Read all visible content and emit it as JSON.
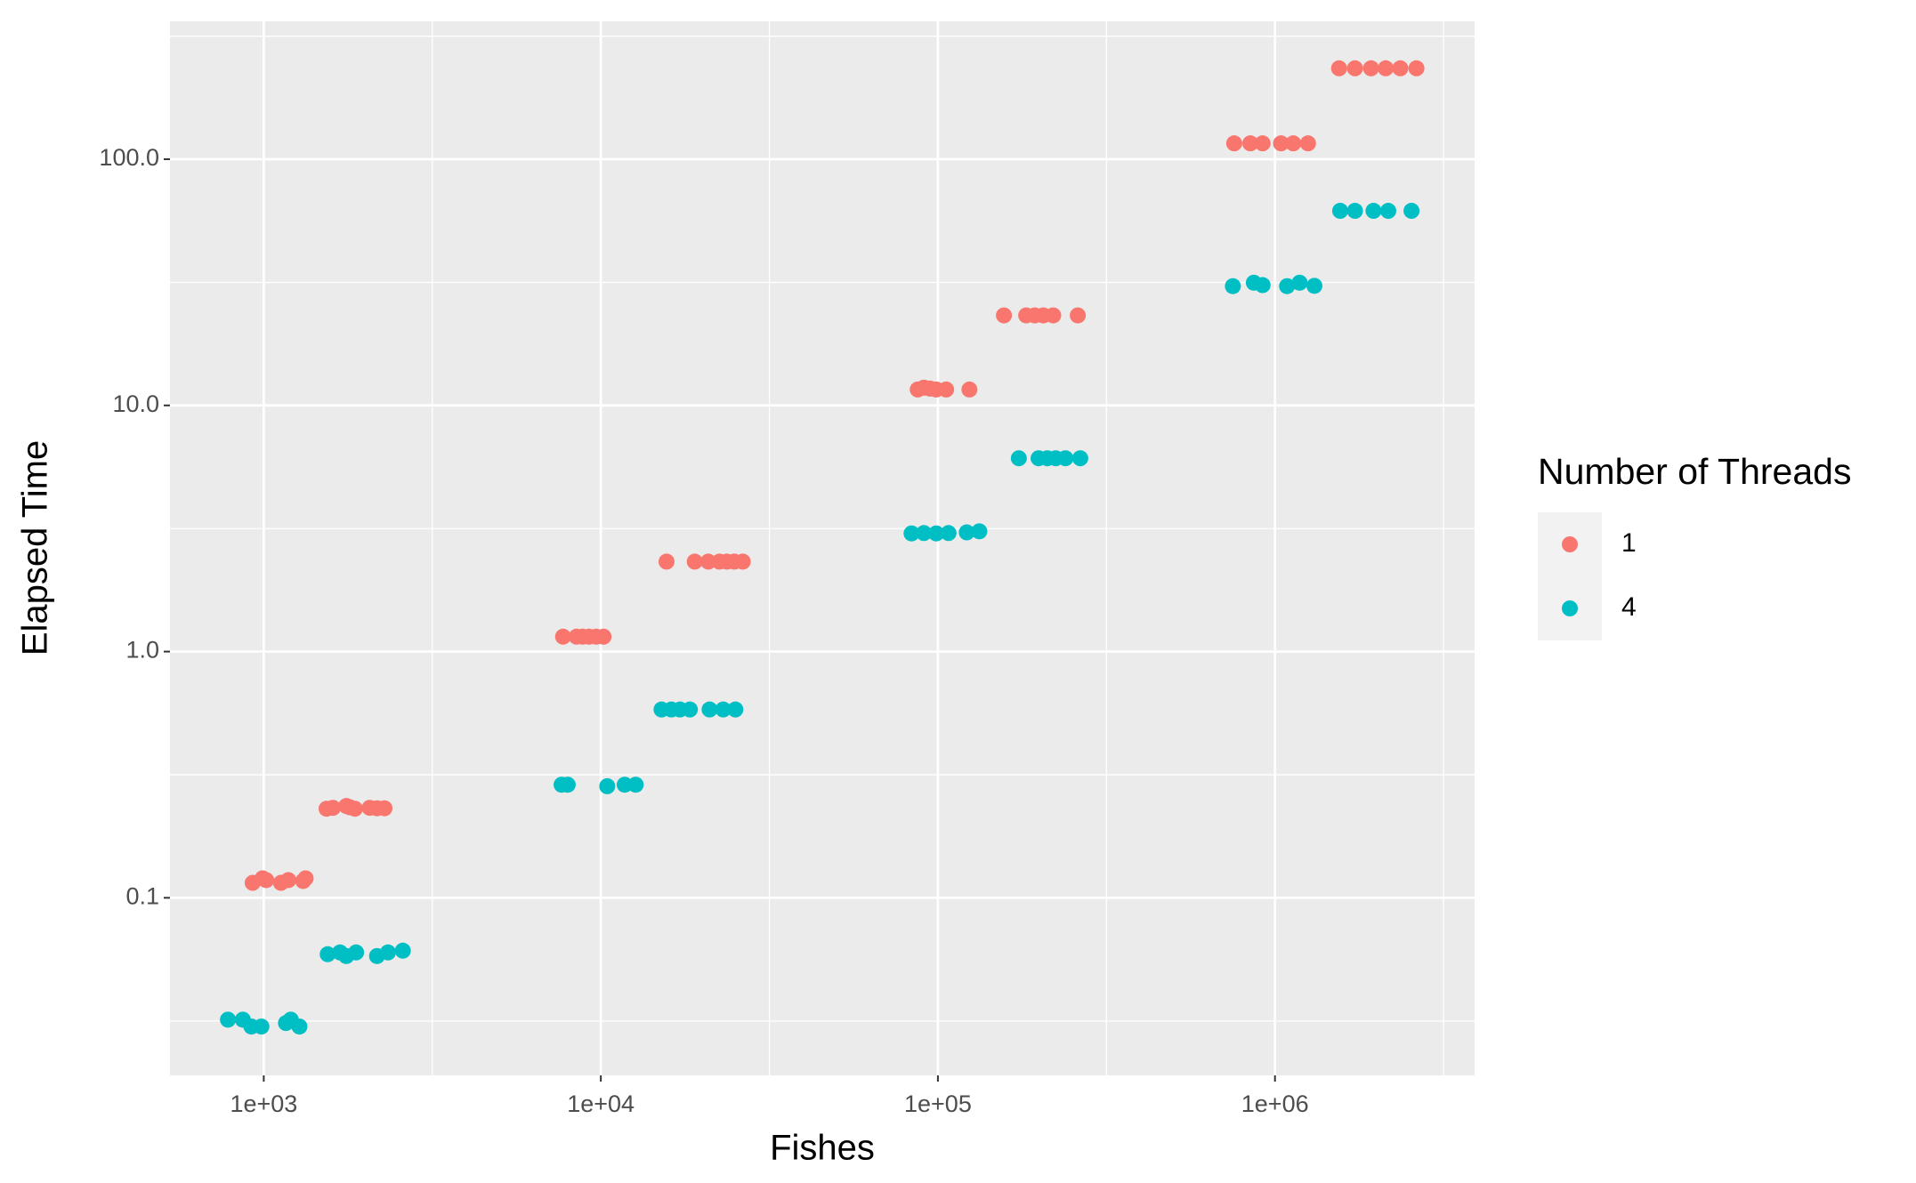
{
  "chart_data": {
    "type": "scatter",
    "x_label": "Fishes",
    "y_label": "Elapsed Time",
    "legend_title": "Number of Threads",
    "legend_position": "right",
    "xscale": "log",
    "yscale": "log",
    "grid": true,
    "xlim": [
      527,
      3910000
    ],
    "ylim": [
      0.019,
      363
    ],
    "xticks": [
      {
        "value": 1000,
        "label": "1e+03"
      },
      {
        "value": 10000,
        "label": "1e+04"
      },
      {
        "value": 100000,
        "label": "1e+05"
      },
      {
        "value": 1000000,
        "label": "1e+06"
      }
    ],
    "yticks": [
      0.1,
      {
        "value": 1,
        "label": "1.0"
      },
      {
        "value": 10,
        "label": "10.0"
      },
      {
        "value": 100,
        "label": "100.0"
      }
    ],
    "xminor": [
      3162,
      31623,
      316228,
      3162278
    ],
    "yminor": [
      0.0316,
      0.316,
      3.16,
      31.6,
      316
    ],
    "series": [
      {
        "name": "1",
        "color": "#F8766D",
        "x": [
          927,
          992,
          1017,
          1125,
          1183,
          1309,
          1331,
          1536,
          1604,
          1758,
          1802,
          1864,
          2062,
          2168,
          2281,
          7727,
          8472,
          8833,
          9226,
          9686,
          10186,
          15665,
          18995,
          20836,
          22488,
          23655,
          24884,
          26368,
          87130,
          90880,
          94810,
          98880,
          105780,
          124030,
          157000,
          182800,
          193800,
          205500,
          219800,
          260000,
          756800,
          845000,
          918700,
          1042000,
          1133000,
          1253000,
          1549000,
          1727000,
          1927000,
          2130000,
          2354000,
          2628000
        ],
        "values": [
          0.115,
          0.12,
          0.118,
          0.115,
          0.118,
          0.117,
          0.12,
          0.23,
          0.232,
          0.236,
          0.233,
          0.23,
          0.232,
          0.231,
          0.231,
          1.15,
          1.15,
          1.15,
          1.15,
          1.15,
          1.15,
          2.32,
          2.32,
          2.32,
          2.32,
          2.32,
          2.32,
          2.32,
          11.6,
          11.8,
          11.7,
          11.6,
          11.6,
          11.6,
          23.2,
          23.2,
          23.2,
          23.2,
          23.2,
          23.2,
          116,
          116,
          116,
          116,
          116,
          116,
          234,
          234,
          234,
          234,
          234,
          234
        ]
      },
      {
        "name": "4",
        "color": "#00BFC4",
        "x": [
          783,
          867,
          919,
          984,
          1164,
          1203,
          1276,
          1548,
          1684,
          1758,
          1879,
          2168,
          2336,
          2586,
          7650,
          7975,
          10448,
          11770,
          12690,
          15140,
          16190,
          17170,
          18370,
          21020,
          23070,
          25070,
          83530,
          90880,
          98880,
          107500,
          121800,
          132700,
          173800,
          198900,
          211000,
          223600,
          239000,
          264400,
          750000,
          865500,
          918700,
          1086000,
          1183000,
          1309000,
          1561000,
          1727000,
          1960000,
          2168000,
          2541000
        ],
        "values": [
          0.032,
          0.032,
          0.03,
          0.03,
          0.031,
          0.032,
          0.03,
          0.059,
          0.06,
          0.058,
          0.06,
          0.058,
          0.06,
          0.061,
          0.288,
          0.288,
          0.284,
          0.288,
          0.288,
          0.582,
          0.582,
          0.582,
          0.582,
          0.582,
          0.582,
          0.582,
          3.02,
          3.03,
          3.02,
          3.03,
          3.05,
          3.08,
          6.1,
          6.1,
          6.1,
          6.1,
          6.1,
          6.1,
          30.5,
          31.5,
          30.8,
          30.5,
          31.5,
          30.6,
          61.7,
          61.7,
          61.7,
          61.7,
          61.7
        ]
      }
    ]
  }
}
